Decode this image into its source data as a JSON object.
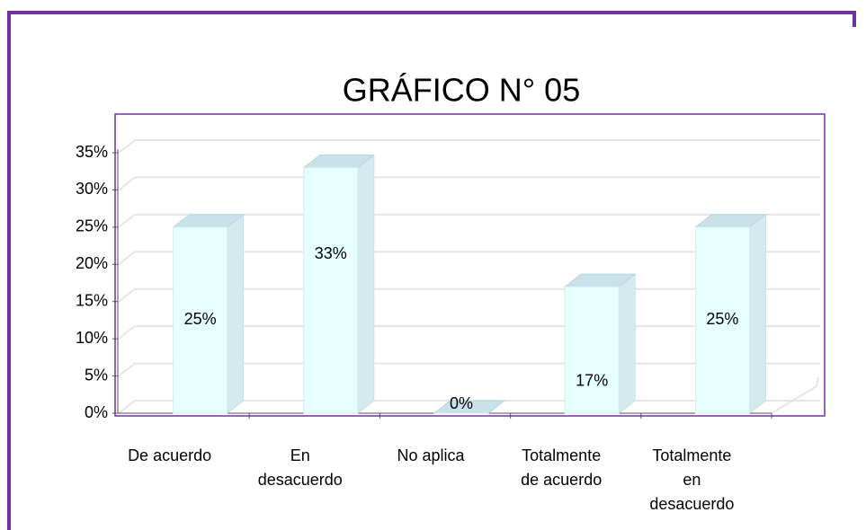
{
  "chart_data": {
    "type": "bar3d",
    "title": "GRÁFICO N° 05",
    "categories": [
      "De acuerdo",
      "En desacuerdo",
      "No aplica",
      "Totalmente de acuerdo",
      "Totalmente en desacuerdo"
    ],
    "values": [
      25,
      33,
      0,
      17,
      25
    ],
    "value_labels": [
      "25%",
      "33%",
      "0%",
      "17%",
      "25%"
    ],
    "color": "#e6ffff",
    "ylim": [
      0,
      35
    ],
    "yticks": [
      {
        "value": 0,
        "label": "0%"
      },
      {
        "value": 5,
        "label": "5%"
      },
      {
        "value": 10,
        "label": "10%"
      },
      {
        "value": 15,
        "label": "15%"
      },
      {
        "value": 20,
        "label": "20%"
      },
      {
        "value": 25,
        "label": "25%"
      },
      {
        "value": 30,
        "label": "30%"
      },
      {
        "value": 35,
        "label": "35%"
      }
    ],
    "grid": true
  }
}
